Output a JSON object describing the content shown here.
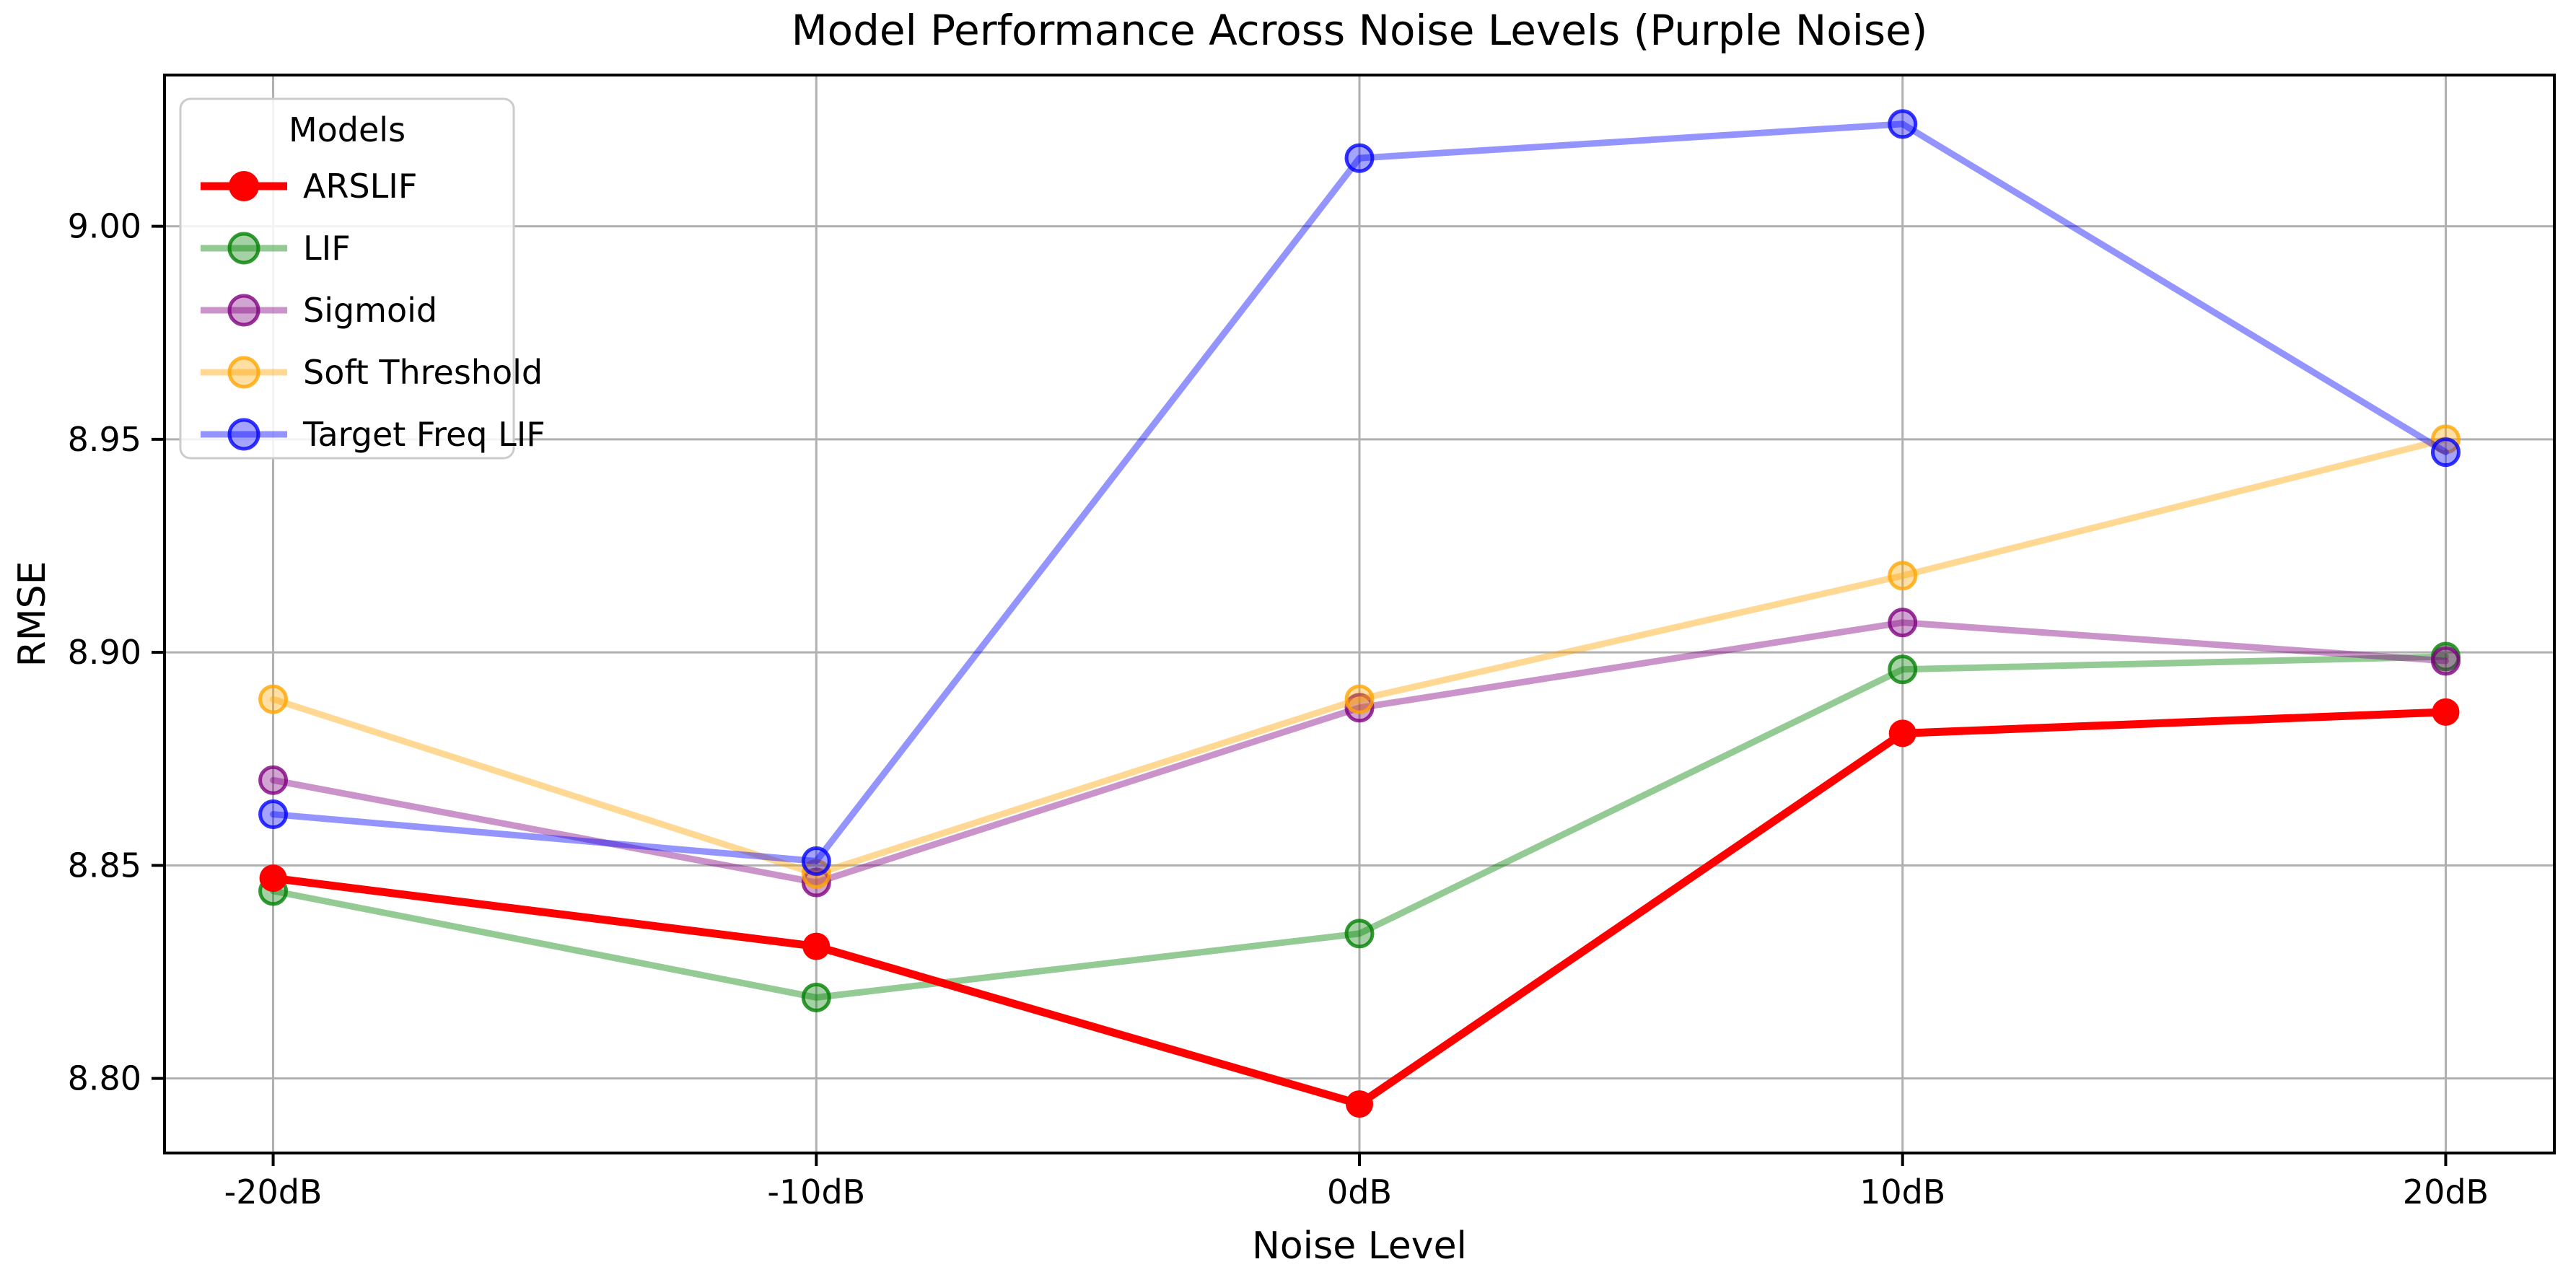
{
  "chart_data": {
    "type": "line",
    "title": "Model Performance Across Noise Levels (Purple Noise)",
    "xlabel": "Noise Level",
    "ylabel": "RMSE",
    "categories": [
      "-20dB",
      "-10dB",
      "0dB",
      "10dB",
      "20dB"
    ],
    "ytick_values": [
      8.8,
      8.85,
      8.9,
      8.95,
      9.0
    ],
    "ytick_labels": [
      "8.80",
      "8.85",
      "8.90",
      "8.95",
      "9.00"
    ],
    "ylim": [
      8.7825,
      9.0355
    ],
    "x_margin_fraction": 0.2,
    "grid": true,
    "legend": {
      "title": "Models",
      "position": "upper left"
    },
    "colors": {
      "grid": "#b0b0b0",
      "spine": "#000000",
      "legend_border": "#cccccc",
      "background": "#ffffff"
    },
    "series": [
      {
        "name": "LIF",
        "color": "#008000",
        "alpha": 0.42,
        "line_width": 9,
        "marker_radius": 18,
        "values": [
          8.844,
          8.819,
          8.834,
          8.896,
          8.899
        ]
      },
      {
        "name": "Sigmoid",
        "color": "#800080",
        "alpha": 0.42,
        "line_width": 9,
        "marker_radius": 18,
        "values": [
          8.87,
          8.846,
          8.887,
          8.907,
          8.898
        ]
      },
      {
        "name": "Soft Threshold",
        "color": "#ffa500",
        "alpha": 0.42,
        "line_width": 9,
        "marker_radius": 18,
        "values": [
          8.889,
          8.848,
          8.889,
          8.918,
          8.95
        ]
      },
      {
        "name": "Target Freq LIF",
        "color": "#0000ff",
        "alpha": 0.42,
        "line_width": 9,
        "marker_radius": 18,
        "values": [
          8.862,
          8.851,
          9.016,
          9.024,
          8.947
        ]
      },
      {
        "name": "ARSLIF",
        "color": "#ff0000",
        "alpha": 1.0,
        "line_width": 11,
        "marker_radius": 19,
        "values": [
          8.847,
          8.831,
          8.794,
          8.881,
          8.886
        ]
      }
    ],
    "legend_order": [
      "ARSLIF",
      "LIF",
      "Sigmoid",
      "Soft Threshold",
      "Target Freq LIF"
    ]
  }
}
